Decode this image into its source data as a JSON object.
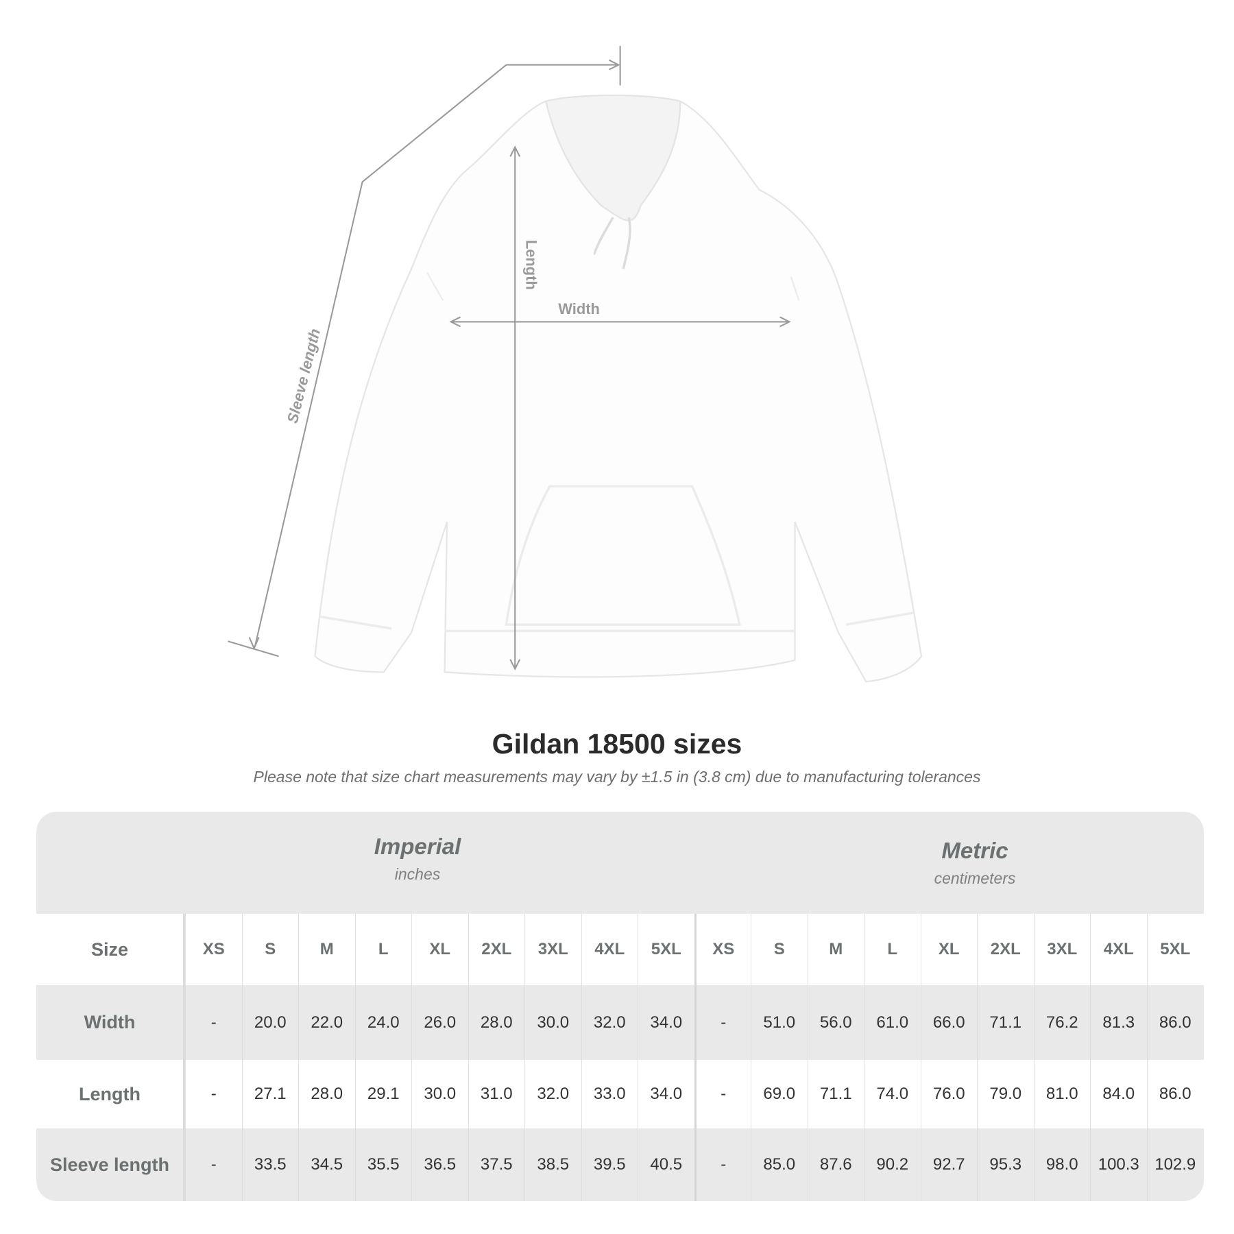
{
  "diagram": {
    "labels": {
      "width": "Width",
      "length": "Length",
      "sleeve": "Sleeve length"
    },
    "line_color": "#9a9a9a"
  },
  "title": "Gildan 18500 sizes",
  "note": "Please note that size chart measurements may vary by ±1.5 in (3.8 cm) due to manufacturing tolerances",
  "table": {
    "imperial": {
      "name": "Imperial",
      "unit": "inches"
    },
    "metric": {
      "name": "Metric",
      "unit": "centimeters"
    },
    "size_label": "Size",
    "sizes": [
      "XS",
      "S",
      "M",
      "L",
      "XL",
      "2XL",
      "3XL",
      "4XL",
      "5XL",
      "XS",
      "S",
      "M",
      "L",
      "XL",
      "2XL",
      "3XL",
      "4XL",
      "5XL"
    ],
    "rows": [
      {
        "label": "Width",
        "values": [
          "-",
          "20.0",
          "22.0",
          "24.0",
          "26.0",
          "28.0",
          "30.0",
          "32.0",
          "34.0",
          "-",
          "51.0",
          "56.0",
          "61.0",
          "66.0",
          "71.1",
          "76.2",
          "81.3",
          "86.0"
        ]
      },
      {
        "label": "Length",
        "values": [
          "-",
          "27.1",
          "28.0",
          "29.1",
          "30.0",
          "31.0",
          "32.0",
          "33.0",
          "34.0",
          "-",
          "69.0",
          "71.1",
          "74.0",
          "76.0",
          "79.0",
          "81.0",
          "84.0",
          "86.0"
        ]
      },
      {
        "label": "Sleeve length",
        "values": [
          "-",
          "33.5",
          "34.5",
          "35.5",
          "36.5",
          "37.5",
          "38.5",
          "39.5",
          "40.5",
          "-",
          "85.0",
          "87.6",
          "90.2",
          "92.7",
          "95.3",
          "98.0",
          "100.3",
          "102.9"
        ]
      }
    ]
  }
}
